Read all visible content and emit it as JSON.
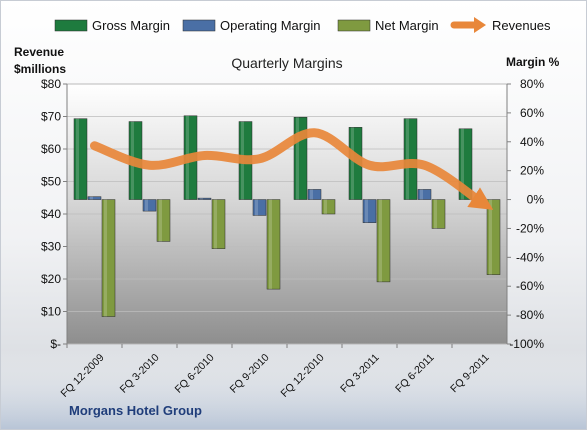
{
  "chart_data": {
    "type": "bar",
    "title": "Quarterly Margins",
    "footer": "Morgans Hotel Group",
    "categories": [
      "FQ 12-2009",
      "FQ 3-2010",
      "FQ 6-2010",
      "FQ 9-2010",
      "FQ 12-2010",
      "FQ 3-2011",
      "FQ 6-2011",
      "FQ 9-2011"
    ],
    "y_left": {
      "label_line1": "Revenue",
      "label_line2": "$millions",
      "range": [
        0,
        80
      ],
      "ticks": [
        "$-",
        "$10",
        "$20",
        "$30",
        "$40",
        "$50",
        "$60",
        "$70",
        "$80"
      ]
    },
    "y_right": {
      "label": "Margin %",
      "range": [
        -100,
        80
      ],
      "ticks": [
        "-100%",
        "-80%",
        "-60%",
        "-40%",
        "-20%",
        "0%",
        "20%",
        "40%",
        "60%",
        "80%"
      ]
    },
    "series": [
      {
        "name": "Gross Margin",
        "axis": "right",
        "kind": "bar",
        "color": "#1e7b3e",
        "values": [
          56,
          54,
          58,
          54,
          57,
          50,
          56,
          49
        ]
      },
      {
        "name": "Operating Margin",
        "axis": "right",
        "kind": "bar",
        "color": "#4a6fa5",
        "values": [
          2,
          -8,
          1,
          -11,
          7,
          -16,
          7,
          -4
        ]
      },
      {
        "name": "Net Margin",
        "axis": "right",
        "kind": "bar",
        "color": "#7f9a40",
        "values": [
          -81,
          -29,
          -34,
          -62,
          -10,
          -57,
          -20,
          -52
        ]
      },
      {
        "name": "Revenues",
        "axis": "left",
        "kind": "line",
        "color": "#e8873a",
        "values": [
          61,
          55,
          58,
          57,
          65,
          55,
          55,
          44
        ]
      }
    ],
    "legend_position": "top",
    "grid": true
  }
}
